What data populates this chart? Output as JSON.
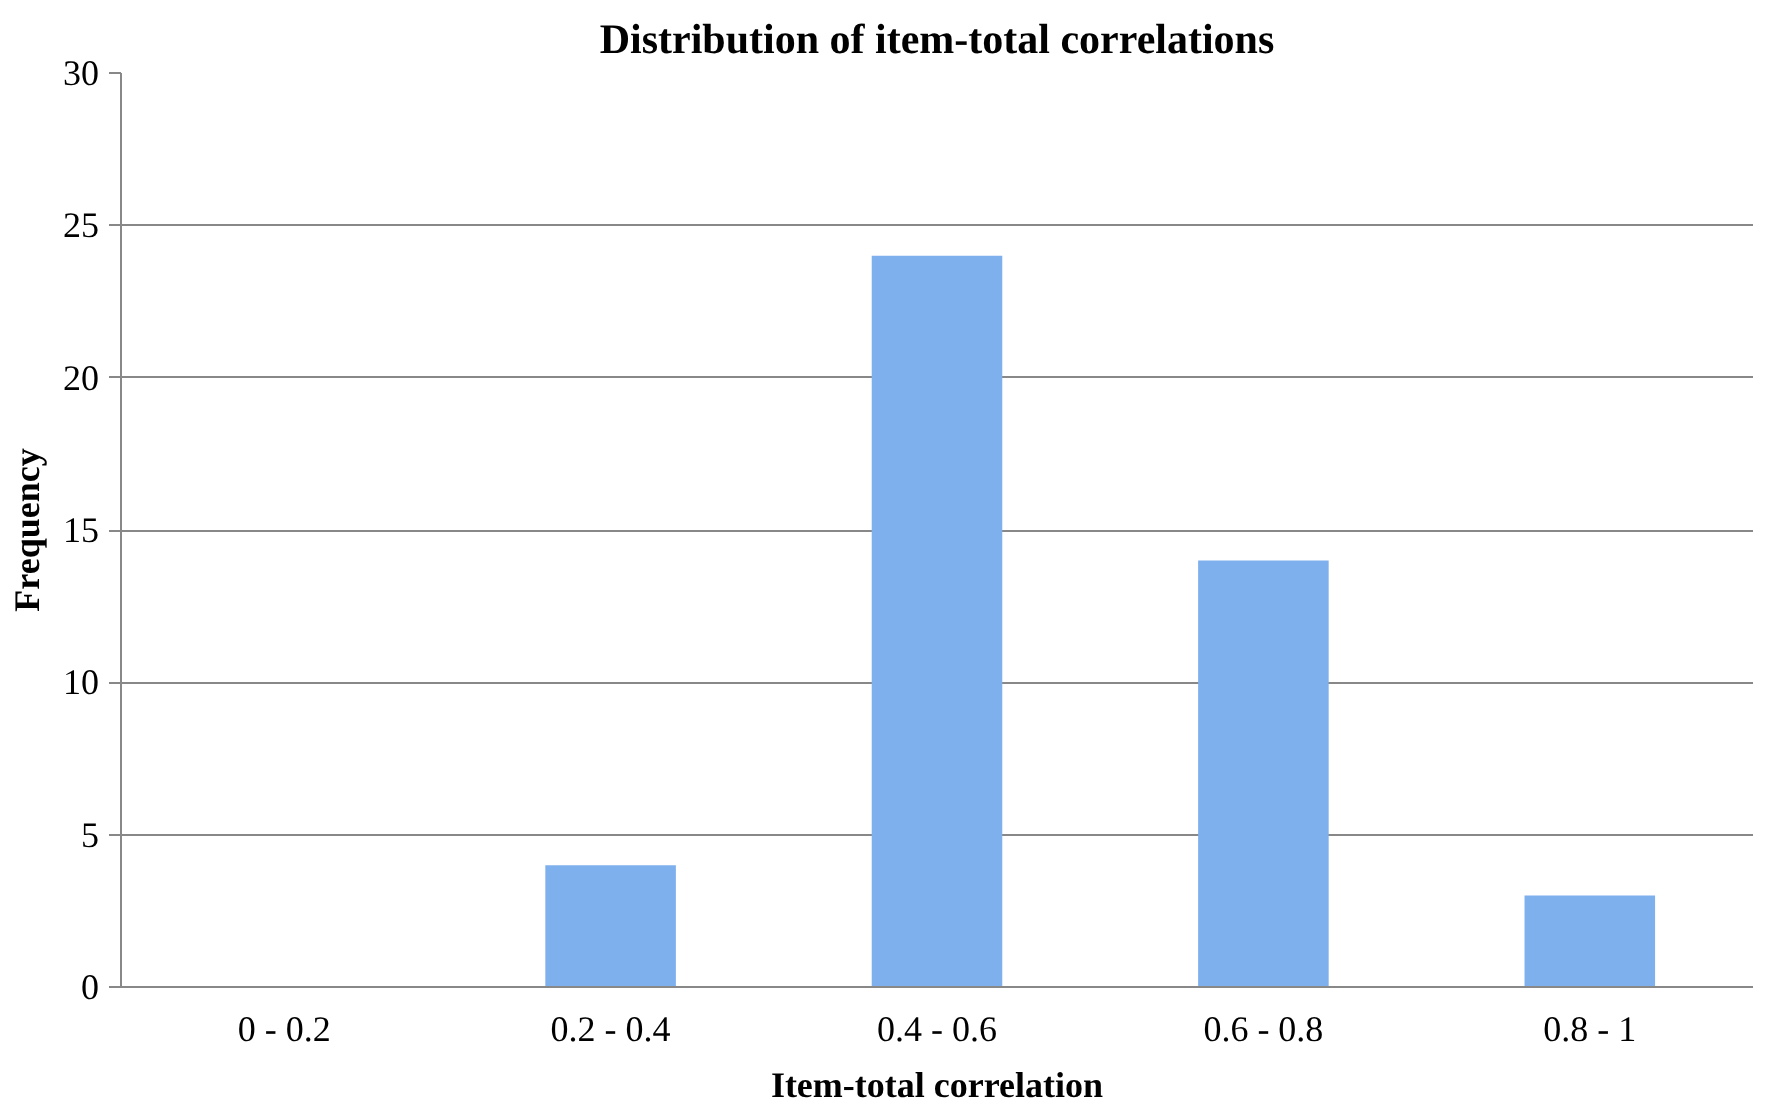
{
  "chart_data": {
    "type": "bar",
    "title": "Distribution of item-total correlations",
    "xlabel": "Item-total correlation",
    "ylabel": "Frequency",
    "categories": [
      "0 - 0.2",
      "0.2 - 0.4",
      "0.4 - 0.6",
      "0.6 - 0.8",
      "0.8 - 1"
    ],
    "values": [
      0,
      4,
      24,
      14,
      3
    ],
    "color": "#7fb0ee",
    "ylim": [
      0,
      30
    ],
    "yticks": [
      0,
      5,
      10,
      15,
      20,
      25,
      30
    ],
    "grid": "y"
  }
}
